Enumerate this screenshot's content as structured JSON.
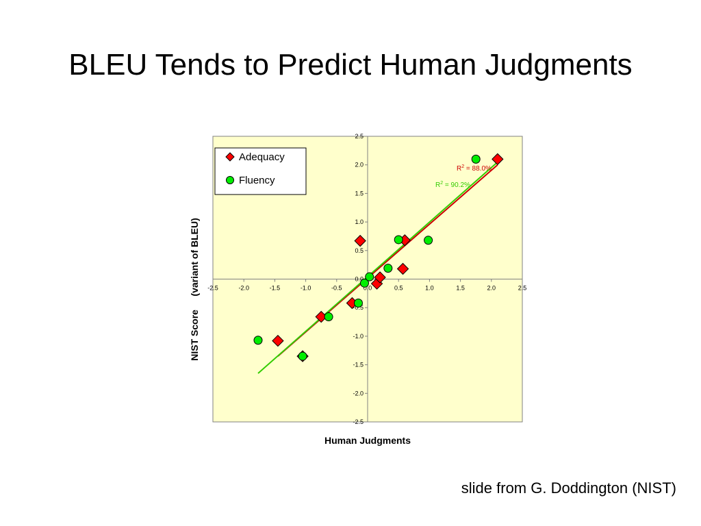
{
  "slide": {
    "title": "BLEU Tends to Predict Human Judgments",
    "credit": "slide from G. Doddington (NIST)"
  },
  "chart_data": {
    "type": "scatter",
    "title": "",
    "xlabel": "Human Judgments",
    "ylabel": "NIST Score     (variant of BLEU)",
    "xlim": [
      -2.5,
      2.5
    ],
    "ylim": [
      -2.5,
      2.5
    ],
    "x_ticks": [
      "-2.5",
      "-2.0",
      "-1.5",
      "-1.0",
      "-0.5",
      "0.0",
      "0.5",
      "1.0",
      "1.5",
      "2.0",
      "2.5"
    ],
    "y_ticks": [
      "2.5",
      "2.0",
      "1.5",
      "1.0",
      "0.5",
      "0.0",
      "-0.5",
      "-1.0",
      "-1.5",
      "-2.0",
      "-2.5"
    ],
    "plot_background": "#ffffcc",
    "grid": false,
    "legend_position": "top-left",
    "series": [
      {
        "name": "Adequacy",
        "marker": "diamond",
        "color": "#ff0000",
        "points": [
          {
            "x": -1.45,
            "y": -1.08
          },
          {
            "x": -1.05,
            "y": -1.35
          },
          {
            "x": -0.75,
            "y": -0.66
          },
          {
            "x": -0.25,
            "y": -0.42
          },
          {
            "x": -0.12,
            "y": 0.67
          },
          {
            "x": 0.15,
            "y": -0.08
          },
          {
            "x": 0.2,
            "y": 0.03
          },
          {
            "x": 0.57,
            "y": 0.18
          },
          {
            "x": 0.6,
            "y": 0.68
          },
          {
            "x": 2.1,
            "y": 2.1
          }
        ],
        "fit": {
          "from": [
            -1.45,
            -1.35
          ],
          "to": [
            2.1,
            2.0
          ],
          "color": "#cc0000",
          "r2_label": "= 88.0%"
        }
      },
      {
        "name": "Fluency",
        "marker": "circle",
        "color": "#00ee00",
        "points": [
          {
            "x": -1.77,
            "y": -1.07
          },
          {
            "x": -1.05,
            "y": -1.35
          },
          {
            "x": -0.63,
            "y": -0.66
          },
          {
            "x": -0.15,
            "y": -0.42
          },
          {
            "x": -0.05,
            "y": -0.07
          },
          {
            "x": 0.03,
            "y": 0.04
          },
          {
            "x": 0.33,
            "y": 0.19
          },
          {
            "x": 0.5,
            "y": 0.69
          },
          {
            "x": 0.98,
            "y": 0.68
          },
          {
            "x": 1.75,
            "y": 2.1
          }
        ],
        "fit": {
          "from": [
            -1.77,
            -1.65
          ],
          "to": [
            2.08,
            2.03
          ],
          "color": "#33cc00",
          "r2_label": "= 90.2%"
        }
      }
    ]
  }
}
